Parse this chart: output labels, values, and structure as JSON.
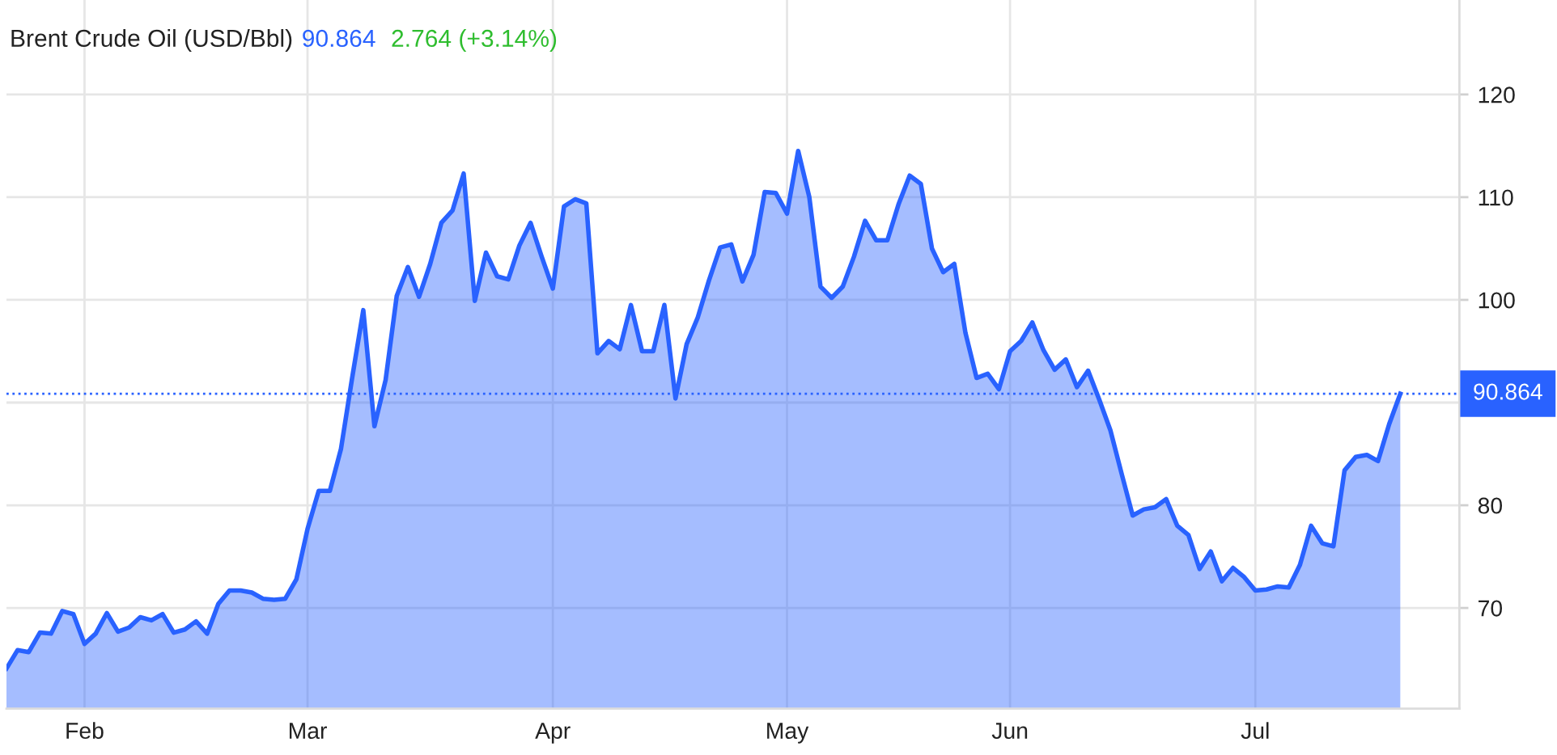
{
  "chart_data": {
    "type": "area",
    "title": "Brent Crude Oil (USD/Bbl)",
    "annotations": [
      "90.864",
      "2.764 (+3.14%)"
    ],
    "categories": [
      null,
      null,
      null,
      null,
      null,
      null,
      null,
      "Feb",
      null,
      null,
      null,
      null,
      null,
      null,
      null,
      null,
      null,
      null,
      null,
      null,
      null,
      null,
      null,
      null,
      null,
      null,
      null,
      "Mar",
      null,
      null,
      null,
      null,
      null,
      null,
      null,
      null,
      null,
      null,
      null,
      null,
      null,
      null,
      null,
      null,
      null,
      null,
      null,
      null,
      null,
      "Apr",
      null,
      null,
      null,
      null,
      null,
      null,
      null,
      null,
      null,
      null,
      null,
      null,
      null,
      null,
      null,
      null,
      null,
      null,
      null,
      null,
      "May",
      null,
      null,
      null,
      null,
      null,
      null,
      null,
      null,
      null,
      null,
      null,
      null,
      null,
      null,
      null,
      null,
      null,
      null,
      null,
      "Jun",
      null,
      null,
      null,
      null,
      null,
      null,
      null,
      null,
      null,
      null,
      null,
      null,
      null,
      null,
      null,
      null,
      null,
      null,
      null,
      null,
      null,
      "Jul",
      null,
      null,
      null,
      null,
      null,
      null,
      null,
      null,
      null,
      null,
      null,
      null,
      null
    ],
    "values": [
      64.1,
      65.9,
      65.7,
      67.6,
      67.5,
      69.7,
      69.4,
      66.5,
      67.5,
      69.5,
      67.7,
      68.1,
      69.1,
      68.8,
      69.4,
      67.6,
      67.9,
      68.7,
      67.5,
      70.4,
      71.7,
      71.7,
      71.5,
      70.9,
      70.8,
      70.9,
      72.8,
      77.7,
      81.4,
      81.4,
      85.5,
      92.4,
      99.0,
      87.7,
      92.2,
      100.4,
      103.2,
      100.3,
      103.5,
      107.5,
      108.7,
      112.3,
      99.9,
      104.6,
      102.3,
      102.0,
      105.3,
      107.5,
      104.2,
      101.1,
      109.1,
      109.8,
      109.4,
      94.8,
      96.0,
      95.2,
      99.5,
      95.0,
      95.0,
      99.5,
      90.4,
      95.7,
      98.3,
      101.9,
      105.1,
      105.4,
      101.8,
      104.4,
      110.5,
      110.4,
      108.4,
      114.5,
      110.0,
      101.3,
      100.2,
      101.3,
      104.2,
      107.7,
      105.8,
      105.8,
      109.3,
      112.1,
      111.3,
      105.0,
      102.7,
      103.5,
      96.8,
      92.4,
      92.8,
      91.3,
      95.0,
      96.0,
      97.8,
      95.1,
      93.2,
      94.2,
      91.5,
      93.1,
      90.3,
      87.3,
      83.1,
      79.0,
      79.6,
      79.8,
      80.6,
      78.0,
      77.1,
      73.8,
      75.5,
      72.6,
      73.9,
      73.0,
      71.7,
      71.8,
      72.1,
      72.0,
      74.2,
      78.0,
      76.3,
      76.0,
      83.4,
      84.7,
      84.9,
      84.3,
      87.9,
      90.864
    ],
    "color": "#2962ff",
    "line_style": "solid",
    "ylim": [
      60.2,
      129.2
    ],
    "yticks": [
      70,
      80,
      {
        "value": 90,
        "label": null
      },
      100,
      110,
      120
    ],
    "ref_lines": [
      {
        "axis": "y",
        "value": 90.864,
        "label": "90.864",
        "color": "#2962ff",
        "line_style": "dotted"
      }
    ],
    "grid": true
  }
}
